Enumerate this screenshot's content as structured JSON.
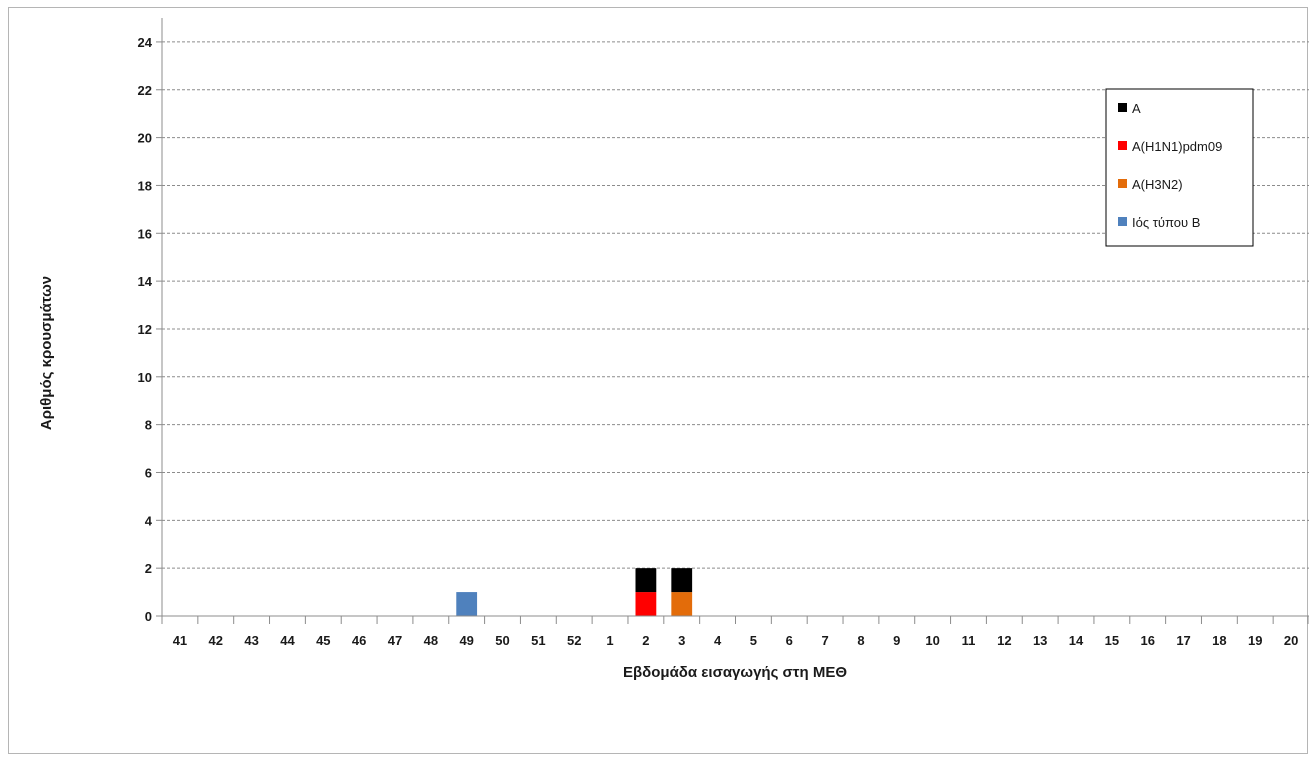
{
  "chart_data": {
    "type": "bar",
    "stacked": true,
    "ylabel": "Αριθμός κρουσμάτων",
    "xlabel": "Εβδομάδα εισαγωγής στη ΜΕΘ",
    "ylim": [
      0,
      25
    ],
    "yticks": [
      0,
      2,
      4,
      6,
      8,
      10,
      12,
      14,
      16,
      18,
      20,
      22,
      24
    ],
    "grid": true,
    "legend_position": "top-right",
    "categories": [
      "41",
      "42",
      "43",
      "44",
      "45",
      "46",
      "47",
      "48",
      "49",
      "50",
      "51",
      "52",
      "1",
      "2",
      "3",
      "4",
      "5",
      "6",
      "7",
      "8",
      "9",
      "10",
      "11",
      "12",
      "13",
      "14",
      "15",
      "16",
      "17",
      "18",
      "19",
      "20"
    ],
    "series": [
      {
        "name": "Α(Η1Ν1)pdm09",
        "color": "#ff0000",
        "values": [
          0,
          0,
          0,
          0,
          0,
          0,
          0,
          0,
          0,
          0,
          0,
          0,
          0,
          1,
          0,
          0,
          0,
          0,
          0,
          0,
          0,
          0,
          0,
          0,
          0,
          0,
          0,
          0,
          0,
          0,
          0,
          0
        ]
      },
      {
        "name": "Α(Η3Ν2)",
        "color": "#e36c0a",
        "values": [
          0,
          0,
          0,
          0,
          0,
          0,
          0,
          0,
          0,
          0,
          0,
          0,
          0,
          0,
          1,
          0,
          0,
          0,
          0,
          0,
          0,
          0,
          0,
          0,
          0,
          0,
          0,
          0,
          0,
          0,
          0,
          0
        ]
      },
      {
        "name": "Ιός τύπου Β",
        "color": "#4f81bd",
        "values": [
          0,
          0,
          0,
          0,
          0,
          0,
          0,
          0,
          1,
          0,
          0,
          0,
          0,
          0,
          0,
          0,
          0,
          0,
          0,
          0,
          0,
          0,
          0,
          0,
          0,
          0,
          0,
          0,
          0,
          0,
          0,
          0
        ]
      },
      {
        "name": "Α",
        "color": "#000000",
        "values": [
          0,
          0,
          0,
          0,
          0,
          0,
          0,
          0,
          0,
          0,
          0,
          0,
          0,
          1,
          1,
          0,
          0,
          0,
          0,
          0,
          0,
          0,
          0,
          0,
          0,
          0,
          0,
          0,
          0,
          0,
          0,
          0
        ]
      }
    ],
    "legend_order": [
      "Α",
      "Α(Η1Ν1)pdm09",
      "Α(Η3Ν2)",
      "Ιός τύπου Β"
    ]
  }
}
